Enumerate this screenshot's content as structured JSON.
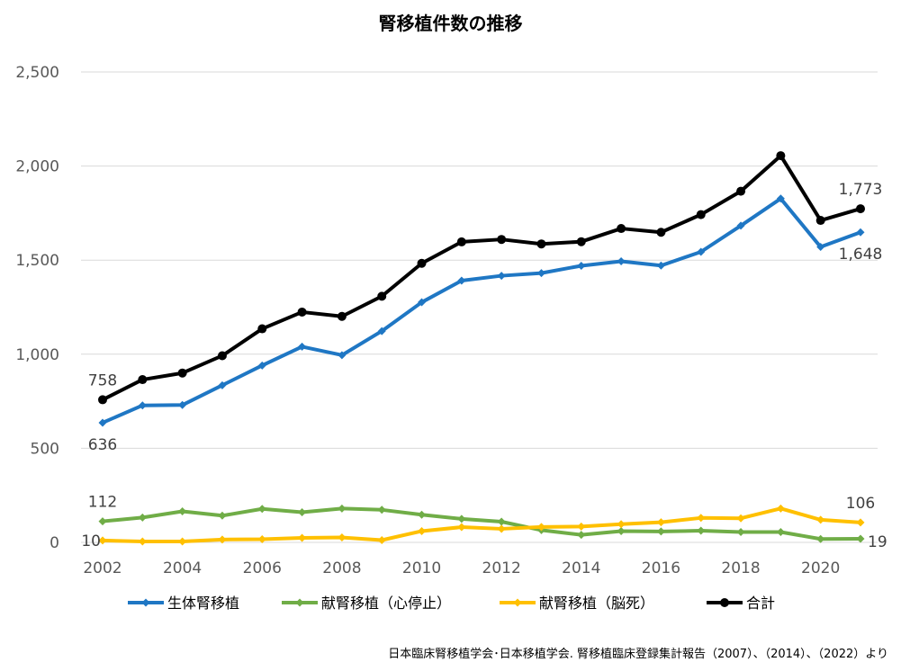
{
  "chart_data": {
    "type": "line",
    "title": "腎移植件数の推移",
    "xlabel": "",
    "ylabel": "",
    "x": [
      2002,
      2003,
      2004,
      2005,
      2006,
      2007,
      2008,
      2009,
      2010,
      2011,
      2012,
      2013,
      2014,
      2015,
      2016,
      2017,
      2018,
      2019,
      2020,
      2021
    ],
    "x_ticks": [
      "2002",
      "2004",
      "2006",
      "2008",
      "2010",
      "2012",
      "2014",
      "2016",
      "2018",
      "2020"
    ],
    "y_ticks": [
      "0",
      "500",
      "1,000",
      "1,500",
      "2,000",
      "2,500"
    ],
    "ylim": [
      0,
      2500
    ],
    "grid": "horizontal",
    "legend_position": "bottom",
    "series": [
      {
        "name": "生体腎移植",
        "color": "#1f77c4",
        "marker": "diamond",
        "values": [
          636,
          728,
          730,
          835,
          940,
          1040,
          995,
          1123,
          1276,
          1391,
          1417,
          1431,
          1470,
          1494,
          1471,
          1544,
          1683,
          1827,
          1570,
          1648
        ]
      },
      {
        "name": "献腎移植（心停止）",
        "color": "#70ad47",
        "marker": "diamond",
        "values": [
          112,
          132,
          165,
          142,
          178,
          160,
          180,
          173,
          147,
          125,
          110,
          65,
          40,
          60,
          58,
          62,
          55,
          55,
          18,
          19
        ]
      },
      {
        "name": "献腎移植（脳死）",
        "color": "#ffc000",
        "marker": "diamond",
        "values": [
          10,
          5,
          5,
          15,
          17,
          24,
          26,
          12,
          60,
          81,
          72,
          82,
          84,
          97,
          107,
          130,
          128,
          180,
          120,
          106
        ]
      },
      {
        "name": "合計",
        "color": "#000000",
        "marker": "circle",
        "values": [
          758,
          865,
          900,
          992,
          1135,
          1224,
          1201,
          1308,
          1483,
          1597,
          1610,
          1586,
          1598,
          1668,
          1648,
          1742,
          1866,
          2055,
          1711,
          1773
        ]
      }
    ],
    "data_labels": [
      {
        "series": 3,
        "index": 0,
        "text": "758",
        "pos": "above"
      },
      {
        "series": 0,
        "index": 0,
        "text": "636",
        "pos": "below"
      },
      {
        "series": 1,
        "index": 0,
        "text": "112",
        "pos": "above"
      },
      {
        "series": 2,
        "index": 0,
        "text": "10",
        "pos": "left"
      },
      {
        "series": 3,
        "index": 19,
        "text": "1,773",
        "pos": "above"
      },
      {
        "series": 0,
        "index": 19,
        "text": "1,648",
        "pos": "below"
      },
      {
        "series": 2,
        "index": 19,
        "text": "106",
        "pos": "above"
      },
      {
        "series": 1,
        "index": 19,
        "text": "19",
        "pos": "right"
      }
    ]
  },
  "source_note": "日本臨床腎移植学会･日本移植学会. 腎移植臨床登録集計報告（2007）、（2014）、（2022）より"
}
